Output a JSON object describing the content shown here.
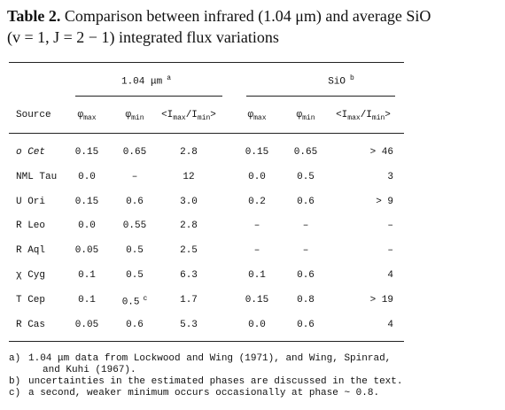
{
  "caption": {
    "label": "Table 2.",
    "lines": [
      "Comparison between infrared (1.04 μm) and average SiO",
      "(v = 1, J = 2 − 1) integrated flux variations"
    ]
  },
  "table": {
    "groups": [
      {
        "text": "1.04 μm",
        "note": "a"
      },
      {
        "text": "SiO",
        "note": "b"
      }
    ],
    "source_header": "Source",
    "column_headers": [
      {
        "base": "φ",
        "sub": "max"
      },
      {
        "base": "φ",
        "sub": "min"
      },
      {
        "pre": "<I",
        "sub1": "max",
        "mid": "/I",
        "sub2": "min",
        "post": ">"
      },
      {
        "base": "φ",
        "sub": "max"
      },
      {
        "base": "φ",
        "sub": "min"
      },
      {
        "pre": "<I",
        "sub1": "max",
        "mid": "/I",
        "sub2": "min",
        "post": ">"
      }
    ],
    "rows": [
      {
        "source": "o Cet",
        "cells": [
          "0.15",
          "0.65",
          "2.8",
          "0.15",
          "0.65",
          "> 46"
        ]
      },
      {
        "source": "NML Tau",
        "cells": [
          "0.0",
          "–",
          "12",
          "0.0",
          "0.5",
          "3"
        ]
      },
      {
        "source": "U Ori",
        "cells": [
          "0.15",
          "0.6",
          "3.0",
          "0.2",
          "0.6",
          "> 9"
        ]
      },
      {
        "source": "R Leo",
        "cells": [
          "0.0",
          "0.55",
          "2.8",
          "–",
          "–",
          "–"
        ]
      },
      {
        "source": "R Aql",
        "cells": [
          "0.05",
          "0.5",
          "2.5",
          "–",
          "–",
          "–"
        ]
      },
      {
        "source": "χ Cyg",
        "cells": [
          "0.1",
          "0.5",
          "6.3",
          "0.1",
          "0.6",
          "4"
        ]
      },
      {
        "source": "T Cep",
        "cells": [
          "0.1",
          {
            "text": "0.5",
            "note": "c"
          },
          "1.7",
          "0.15",
          "0.8",
          "> 19"
        ]
      },
      {
        "source": "R Cas",
        "cells": [
          "0.05",
          "0.6",
          "5.3",
          "0.0",
          "0.6",
          "4"
        ]
      }
    ]
  },
  "footnotes": [
    {
      "mark": "a)",
      "lines": [
        "1.04 μm data from Lockwood and Wing (1971), and Wing, Spinrad,",
        "and Kuhi (1967)."
      ]
    },
    {
      "mark": "b)",
      "lines": [
        "uncertainties in the estimated phases are discussed in the text."
      ]
    },
    {
      "mark": "c)",
      "lines": [
        "a second, weaker minimum occurs occasionally at phase ~ 0.8."
      ]
    }
  ]
}
